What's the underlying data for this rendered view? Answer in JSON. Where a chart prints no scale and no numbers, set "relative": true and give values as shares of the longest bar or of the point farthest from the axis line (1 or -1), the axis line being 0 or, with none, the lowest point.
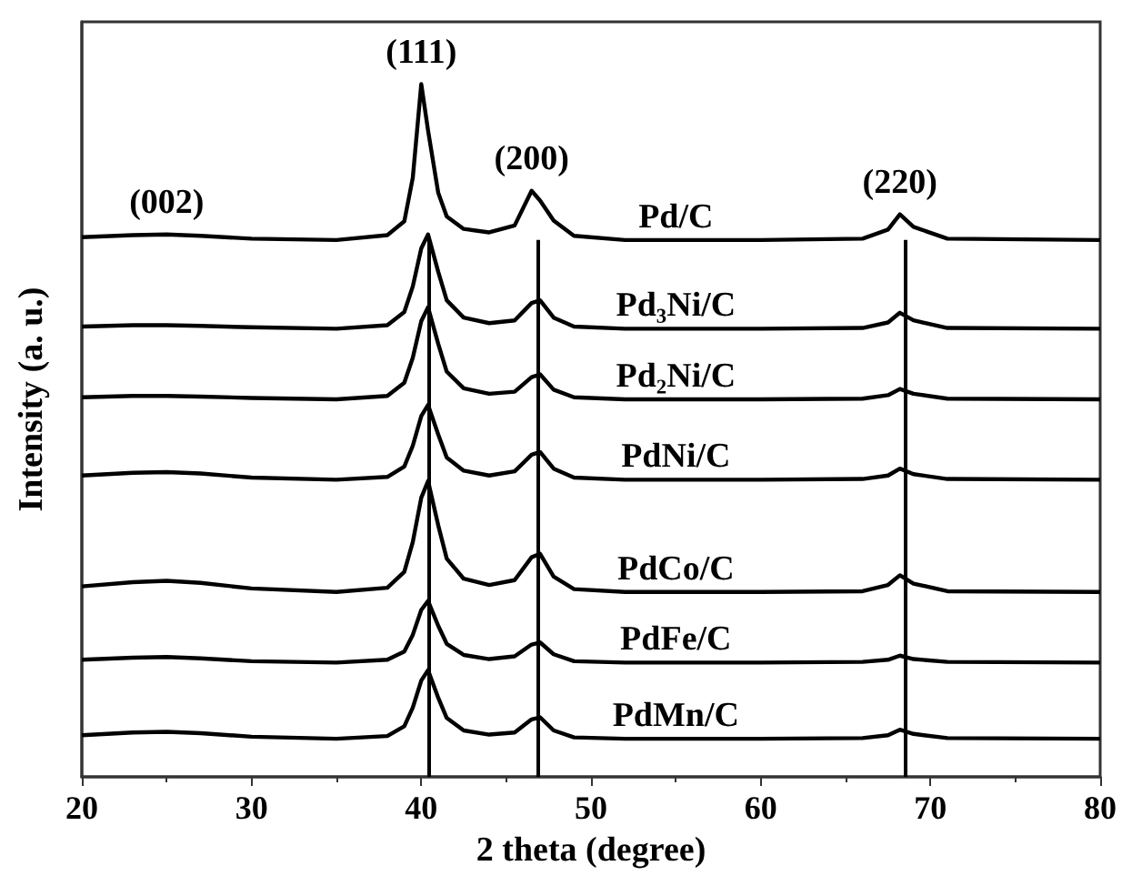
{
  "chart_data": {
    "type": "line",
    "relative": true,
    "xlabel": "2 theta (degree)",
    "ylabel": "Intensity (a. u.)",
    "xlim": [
      20,
      80
    ],
    "xticks": [
      20,
      30,
      40,
      50,
      60,
      70,
      80
    ],
    "tick_labels": "x",
    "grid": false,
    "legend": false,
    "marker": "none",
    "line_style": "solid",
    "x": [
      20,
      23,
      25,
      27,
      30,
      35,
      38,
      39,
      39.5,
      40,
      40.4,
      41,
      41.5,
      42.5,
      44,
      45.5,
      46.5,
      47,
      47.8,
      49,
      52,
      60,
      66,
      67.5,
      68.2,
      69,
      71,
      80
    ],
    "series": [
      {
        "name": "Pd/C",
        "color": "#000000",
        "values": [
          0.779,
          0.782,
          0.783,
          0.781,
          0.777,
          0.775,
          0.782,
          0.802,
          0.865,
          1.0,
          0.933,
          0.843,
          0.809,
          0.791,
          0.786,
          0.796,
          0.846,
          0.832,
          0.803,
          0.781,
          0.775,
          0.775,
          0.777,
          0.79,
          0.812,
          0.794,
          0.777,
          0.775
        ]
      },
      {
        "name": "Pd₃Ni/C",
        "color": "#000000",
        "values": [
          0.65,
          0.652,
          0.652,
          0.651,
          0.649,
          0.647,
          0.652,
          0.671,
          0.708,
          0.763,
          0.783,
          0.729,
          0.688,
          0.663,
          0.655,
          0.659,
          0.684,
          0.688,
          0.663,
          0.65,
          0.647,
          0.647,
          0.648,
          0.656,
          0.67,
          0.659,
          0.648,
          0.647
        ]
      },
      {
        "name": "Pd₂Ni/C",
        "color": "#000000",
        "values": [
          0.548,
          0.55,
          0.55,
          0.549,
          0.547,
          0.545,
          0.55,
          0.569,
          0.605,
          0.658,
          0.678,
          0.625,
          0.585,
          0.561,
          0.553,
          0.556,
          0.577,
          0.581,
          0.559,
          0.548,
          0.545,
          0.545,
          0.546,
          0.551,
          0.56,
          0.553,
          0.546,
          0.545
        ]
      },
      {
        "name": "PdNi/C",
        "color": "#000000",
        "values": [
          0.435,
          0.439,
          0.44,
          0.438,
          0.432,
          0.429,
          0.433,
          0.448,
          0.478,
          0.521,
          0.537,
          0.494,
          0.461,
          0.442,
          0.435,
          0.441,
          0.465,
          0.469,
          0.445,
          0.432,
          0.429,
          0.429,
          0.43,
          0.435,
          0.445,
          0.437,
          0.43,
          0.429
        ]
      },
      {
        "name": "PdCo/C",
        "color": "#000000",
        "values": [
          0.275,
          0.281,
          0.283,
          0.28,
          0.272,
          0.267,
          0.273,
          0.296,
          0.339,
          0.403,
          0.427,
          0.363,
          0.315,
          0.286,
          0.277,
          0.284,
          0.317,
          0.322,
          0.289,
          0.271,
          0.267,
          0.267,
          0.268,
          0.277,
          0.291,
          0.279,
          0.268,
          0.267
        ]
      },
      {
        "name": "PdFe/C",
        "color": "#000000",
        "values": [
          0.169,
          0.172,
          0.173,
          0.171,
          0.167,
          0.165,
          0.169,
          0.181,
          0.205,
          0.241,
          0.254,
          0.218,
          0.192,
          0.176,
          0.17,
          0.174,
          0.191,
          0.194,
          0.177,
          0.167,
          0.165,
          0.165,
          0.166,
          0.169,
          0.175,
          0.17,
          0.166,
          0.165
        ]
      },
      {
        "name": "PdMn/C",
        "color": "#000000",
        "values": [
          0.06,
          0.064,
          0.065,
          0.063,
          0.058,
          0.055,
          0.059,
          0.073,
          0.1,
          0.139,
          0.154,
          0.114,
          0.085,
          0.067,
          0.061,
          0.064,
          0.083,
          0.086,
          0.067,
          0.057,
          0.055,
          0.055,
          0.056,
          0.06,
          0.068,
          0.062,
          0.056,
          0.055
        ]
      }
    ],
    "ref_lines": [
      {
        "axis": "x",
        "value": 40.4,
        "color": "#000000",
        "line_style": "solid"
      },
      {
        "axis": "x",
        "value": 46.9,
        "color": "#000000",
        "line_style": "solid"
      },
      {
        "axis": "x",
        "value": 68.5,
        "color": "#000000",
        "line_style": "solid"
      }
    ],
    "annotations": [
      {
        "text": "(002)",
        "x": 25,
        "y": 0.783
      },
      {
        "text": "(111)",
        "x": 40,
        "y": 1.0
      },
      {
        "text": "(200)",
        "x": 46.5,
        "y": 0.846
      },
      {
        "text": "(220)",
        "x": 68.2,
        "y": 0.812
      }
    ]
  }
}
